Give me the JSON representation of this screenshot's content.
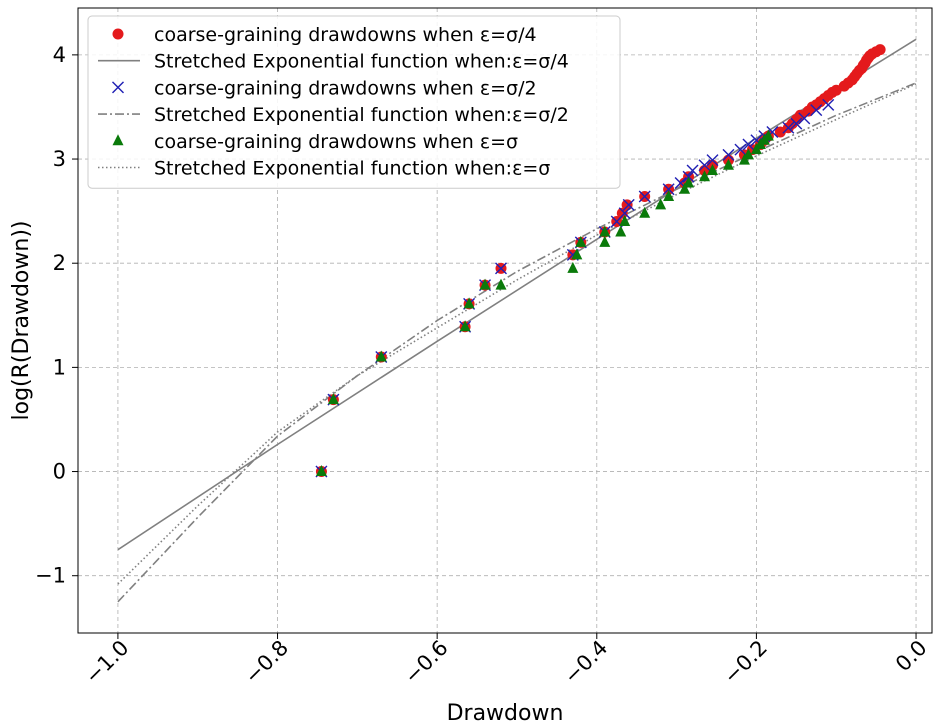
{
  "chart_data": {
    "type": "scatter",
    "title": "",
    "xlabel": "Drawdown",
    "ylabel": "log(R(Drawdown))",
    "xlim": [
      -1.05,
      0.02
    ],
    "ylim": [
      -1.55,
      4.45
    ],
    "xticks": [
      -1.0,
      -0.8,
      -0.6,
      -0.4,
      -0.2,
      0.0
    ],
    "xtick_labels": [
      "−1.0",
      "−0.8",
      "−0.6",
      "−0.4",
      "−0.2",
      "0.0"
    ],
    "yticks": [
      -1,
      0,
      1,
      2,
      3,
      4
    ],
    "ytick_labels": [
      "−1",
      "0",
      "1",
      "2",
      "3",
      "4"
    ],
    "grid": true,
    "legend_position": "top-left",
    "series": [
      {
        "name": "coarse-graining drawdowns when ε=σ/4",
        "kind": "scatter",
        "marker": "circle",
        "color": "#e41a1c",
        "points": [
          [
            -0.745,
            0.0
          ],
          [
            -0.73,
            0.69
          ],
          [
            -0.67,
            1.1
          ],
          [
            -0.565,
            1.39
          ],
          [
            -0.56,
            1.61
          ],
          [
            -0.54,
            1.79
          ],
          [
            -0.52,
            1.95
          ],
          [
            -0.43,
            2.08
          ],
          [
            -0.42,
            2.2
          ],
          [
            -0.39,
            2.3
          ],
          [
            -0.375,
            2.4
          ],
          [
            -0.368,
            2.48
          ],
          [
            -0.362,
            2.56
          ],
          [
            -0.34,
            2.64
          ],
          [
            -0.31,
            2.71
          ],
          [
            -0.29,
            2.77
          ],
          [
            -0.285,
            2.83
          ],
          [
            -0.265,
            2.89
          ],
          [
            -0.255,
            2.94
          ],
          [
            -0.235,
            2.99
          ],
          [
            -0.215,
            3.04
          ],
          [
            -0.205,
            3.09
          ],
          [
            -0.195,
            3.14
          ],
          [
            -0.19,
            3.18
          ],
          [
            -0.185,
            3.22
          ],
          [
            -0.17,
            3.26
          ],
          [
            -0.16,
            3.3
          ],
          [
            -0.155,
            3.34
          ],
          [
            -0.15,
            3.38
          ],
          [
            -0.145,
            3.42
          ],
          [
            -0.135,
            3.46
          ],
          [
            -0.13,
            3.5
          ],
          [
            -0.125,
            3.52
          ],
          [
            -0.12,
            3.55
          ],
          [
            -0.115,
            3.58
          ],
          [
            -0.11,
            3.61
          ],
          [
            -0.105,
            3.64
          ],
          [
            -0.1,
            3.66
          ],
          [
            -0.09,
            3.7
          ],
          [
            -0.085,
            3.73
          ],
          [
            -0.08,
            3.76
          ],
          [
            -0.077,
            3.79
          ],
          [
            -0.074,
            3.82
          ],
          [
            -0.071,
            3.85
          ],
          [
            -0.068,
            3.87
          ],
          [
            -0.066,
            3.9
          ],
          [
            -0.064,
            3.92
          ],
          [
            -0.062,
            3.95
          ],
          [
            -0.06,
            3.97
          ],
          [
            -0.058,
            3.99
          ],
          [
            -0.055,
            4.01
          ],
          [
            -0.05,
            4.03
          ],
          [
            -0.045,
            4.05
          ]
        ]
      },
      {
        "name": "Stretched Exponential function when:ε=σ/4",
        "kind": "line",
        "style": "solid",
        "color": "#808080",
        "points": [
          [
            -1.0,
            -0.75
          ],
          [
            -0.8,
            0.26
          ],
          [
            -0.6,
            1.25
          ],
          [
            -0.4,
            2.23
          ],
          [
            -0.2,
            3.2
          ],
          [
            0.0,
            4.15
          ]
        ]
      },
      {
        "name": "coarse-graining drawdowns when ε=σ/2",
        "kind": "scatter",
        "marker": "x",
        "color": "#1f1fb4",
        "points": [
          [
            -0.745,
            0.0
          ],
          [
            -0.73,
            0.69
          ],
          [
            -0.67,
            1.1
          ],
          [
            -0.565,
            1.39
          ],
          [
            -0.56,
            1.61
          ],
          [
            -0.54,
            1.79
          ],
          [
            -0.52,
            1.95
          ],
          [
            -0.43,
            2.08
          ],
          [
            -0.42,
            2.2
          ],
          [
            -0.39,
            2.3
          ],
          [
            -0.375,
            2.4
          ],
          [
            -0.365,
            2.48
          ],
          [
            -0.36,
            2.56
          ],
          [
            -0.34,
            2.64
          ],
          [
            -0.31,
            2.71
          ],
          [
            -0.295,
            2.77
          ],
          [
            -0.285,
            2.83
          ],
          [
            -0.28,
            2.89
          ],
          [
            -0.265,
            2.94
          ],
          [
            -0.255,
            2.99
          ],
          [
            -0.235,
            3.04
          ],
          [
            -0.22,
            3.09
          ],
          [
            -0.21,
            3.14
          ],
          [
            -0.2,
            3.18
          ],
          [
            -0.19,
            3.22
          ],
          [
            -0.18,
            3.26
          ],
          [
            -0.16,
            3.3
          ],
          [
            -0.15,
            3.34
          ],
          [
            -0.14,
            3.39
          ],
          [
            -0.125,
            3.47
          ],
          [
            -0.11,
            3.52
          ]
        ]
      },
      {
        "name": "Stretched Exponential function when:ε=σ/2",
        "kind": "line",
        "style": "dashdot",
        "color": "#808080",
        "points": [
          [
            -1.0,
            -1.25
          ],
          [
            -0.9,
            -0.44
          ],
          [
            -0.8,
            0.34
          ],
          [
            -0.7,
            0.92
          ],
          [
            -0.6,
            1.45
          ],
          [
            -0.5,
            1.92
          ],
          [
            -0.4,
            2.33
          ],
          [
            -0.3,
            2.71
          ],
          [
            -0.2,
            3.07
          ],
          [
            -0.1,
            3.42
          ],
          [
            0.0,
            3.73
          ]
        ]
      },
      {
        "name": "coarse-graining drawdowns when ε=σ",
        "kind": "scatter",
        "marker": "triangle",
        "color": "#0a7a0a",
        "points": [
          [
            -0.745,
            0.0
          ],
          [
            -0.73,
            0.69
          ],
          [
            -0.67,
            1.1
          ],
          [
            -0.565,
            1.39
          ],
          [
            -0.56,
            1.61
          ],
          [
            -0.54,
            1.79
          ],
          [
            -0.52,
            1.79
          ],
          [
            -0.43,
            1.95
          ],
          [
            -0.425,
            2.08
          ],
          [
            -0.42,
            2.2
          ],
          [
            -0.39,
            2.2
          ],
          [
            -0.39,
            2.3
          ],
          [
            -0.37,
            2.3
          ],
          [
            -0.365,
            2.4
          ],
          [
            -0.34,
            2.48
          ],
          [
            -0.32,
            2.56
          ],
          [
            -0.31,
            2.64
          ],
          [
            -0.29,
            2.71
          ],
          [
            -0.285,
            2.77
          ],
          [
            -0.265,
            2.83
          ],
          [
            -0.255,
            2.89
          ],
          [
            -0.235,
            2.94
          ],
          [
            -0.215,
            2.99
          ],
          [
            -0.21,
            3.04
          ],
          [
            -0.2,
            3.09
          ],
          [
            -0.195,
            3.14
          ],
          [
            -0.19,
            3.18
          ],
          [
            -0.185,
            3.22
          ]
        ]
      },
      {
        "name": "Stretched Exponential function when:ε=σ",
        "kind": "line",
        "style": "dotted",
        "color": "#808080",
        "points": [
          [
            -1.0,
            -1.08
          ],
          [
            -0.9,
            -0.33
          ],
          [
            -0.8,
            0.38
          ],
          [
            -0.7,
            0.92
          ],
          [
            -0.6,
            1.38
          ],
          [
            -0.5,
            1.84
          ],
          [
            -0.4,
            2.27
          ],
          [
            -0.3,
            2.66
          ],
          [
            -0.2,
            3.03
          ],
          [
            -0.1,
            3.38
          ],
          [
            0.0,
            3.72
          ]
        ]
      }
    ]
  }
}
